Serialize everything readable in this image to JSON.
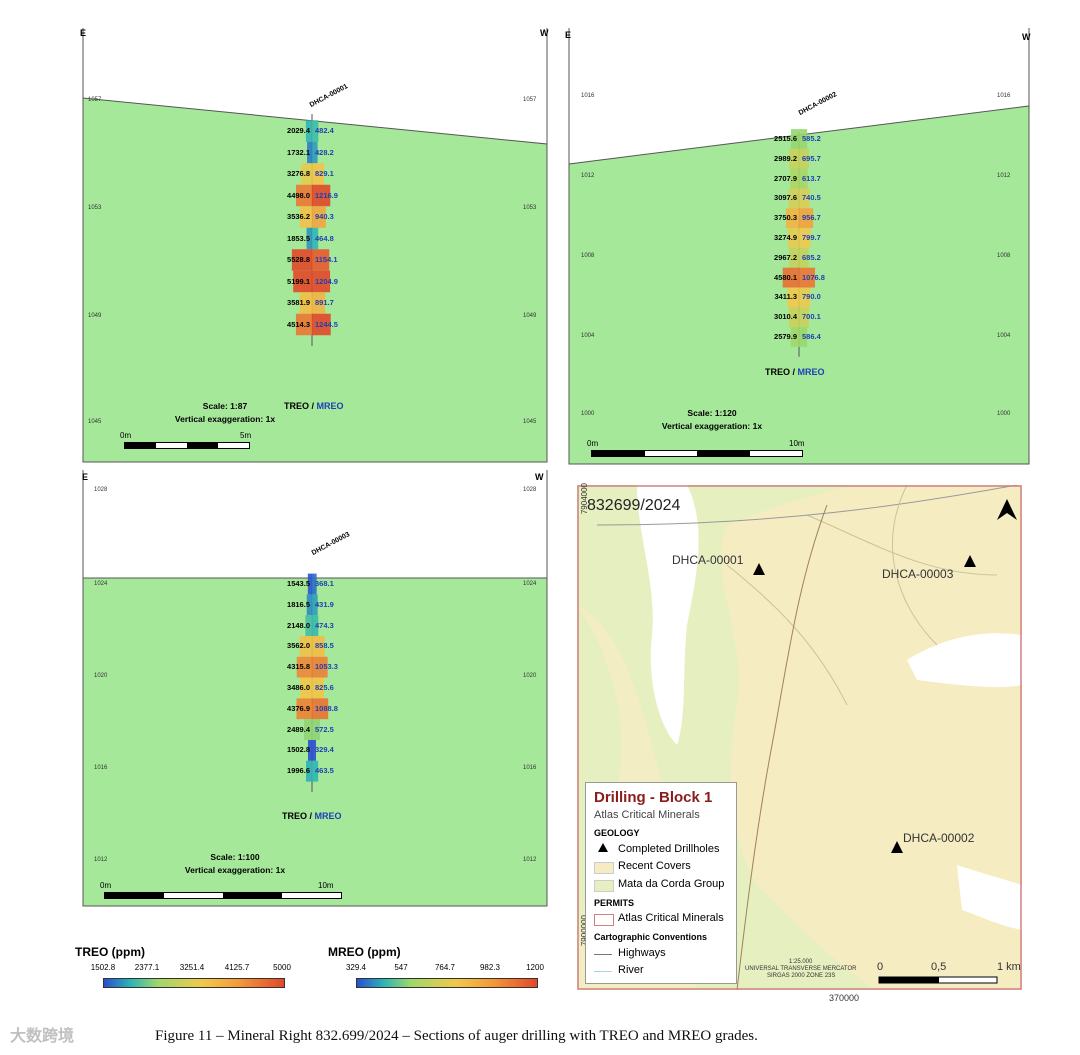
{
  "sections": [
    {
      "id": "s1",
      "east": "E",
      "west": "W",
      "hole": "DHCA-00001",
      "elevations": [
        "1057",
        "1053",
        "1049",
        "1045"
      ],
      "treo": [
        "2029.4",
        "1732.1",
        "3276.8",
        "4498.0",
        "3536.2",
        "1853.5",
        "5528.8",
        "5199.1",
        "3581.9",
        "4514.3"
      ],
      "mreo": [
        "482.4",
        "428.2",
        "829.1",
        "1216.9",
        "940.3",
        "464.8",
        "1154.1",
        "1204.9",
        "891.7",
        "1244.5"
      ],
      "label_treo": "TREO /",
      "label_mreo": "MREO",
      "scale": "Scale: 1:87",
      "vex": "Vertical exaggeration: 1x",
      "bar_start": "0m",
      "bar_end": "5m"
    },
    {
      "id": "s2",
      "east": "E",
      "west": "W",
      "hole": "DHCA-00002",
      "elevations": [
        "1016",
        "1012",
        "1008",
        "1004",
        "1000"
      ],
      "treo": [
        "2515.6",
        "2989.2",
        "2707.9",
        "3097.6",
        "3750.3",
        "3274.9",
        "2967.2",
        "4580.1",
        "3411.3",
        "3010.4",
        "2579.9"
      ],
      "mreo": [
        "585.2",
        "695.7",
        "613.7",
        "740.5",
        "956.7",
        "799.7",
        "685.2",
        "1076.8",
        "790.0",
        "700.1",
        "586.4"
      ],
      "label_treo": "TREO /",
      "label_mreo": "MREO",
      "scale": "Scale: 1:120",
      "vex": "Vertical exaggeration: 1x",
      "bar_start": "0m",
      "bar_end": "10m"
    },
    {
      "id": "s3",
      "east": "E",
      "west": "W",
      "hole": "DHCA-00003",
      "elevations": [
        "1028",
        "1024",
        "1020",
        "1016",
        "1012"
      ],
      "treo": [
        "1543.5",
        "1816.5",
        "2148.0",
        "3562.0",
        "4315.8",
        "3486.0",
        "4376.9",
        "2489.4",
        "1502.8",
        "1996.6"
      ],
      "mreo": [
        "368.1",
        "431.9",
        "474.3",
        "858.5",
        "1053.3",
        "825.6",
        "1088.8",
        "572.5",
        "329.4",
        "463.5"
      ],
      "label_treo": "TREO /",
      "label_mreo": "MREO",
      "scale": "Scale: 1:100",
      "vex": "Vertical exaggeration: 1x",
      "bar_start": "0m",
      "bar_end": "10m"
    }
  ],
  "colorbars": {
    "treo": {
      "title": "TREO (ppm)",
      "ticks": [
        "1502.8",
        "2377.1",
        "3251.4",
        "4125.7",
        "5000"
      ]
    },
    "mreo": {
      "title": "MREO (ppm)",
      "ticks": [
        "329.4",
        "547",
        "764.7",
        "982.3",
        "1200"
      ]
    }
  },
  "map": {
    "permit": "832699/2024",
    "holes": [
      "DHCA-00001",
      "DHCA-00003",
      "DHCA-00002"
    ],
    "y_top": "7904000",
    "y_bottom": "7900000",
    "x_label": "370000",
    "scale_ratio": "1:25.000",
    "projection": "UNIVERSAL TRANSVERSE MERCATOR",
    "datum": "SIRGAS 2000 ZONE 23S",
    "scale_ticks": [
      "0",
      "0,5",
      "1 km"
    ],
    "legend": {
      "title": "Drilling - Block 1",
      "subtitle": "Atlas Critical Minerals",
      "geology": "GEOLOGY",
      "completed": "Completed Drillholes",
      "recent": "Recent Covers",
      "mata": "Mata da Corda Group",
      "permits": "PERMITS",
      "atlas": "Atlas Critical Minerals",
      "carto": "Cartographic Conventions",
      "highways": "Highways",
      "river": "River"
    },
    "colors": {
      "recent": "#f5ecc2",
      "mata": "#e6efc0",
      "permit_border": "#d08080"
    }
  },
  "caption": "Figure 11 – Mineral Right 832.699/2024 – Sections of auger drilling with TREO and MREO grades.",
  "watermark": "大数跨境"
}
